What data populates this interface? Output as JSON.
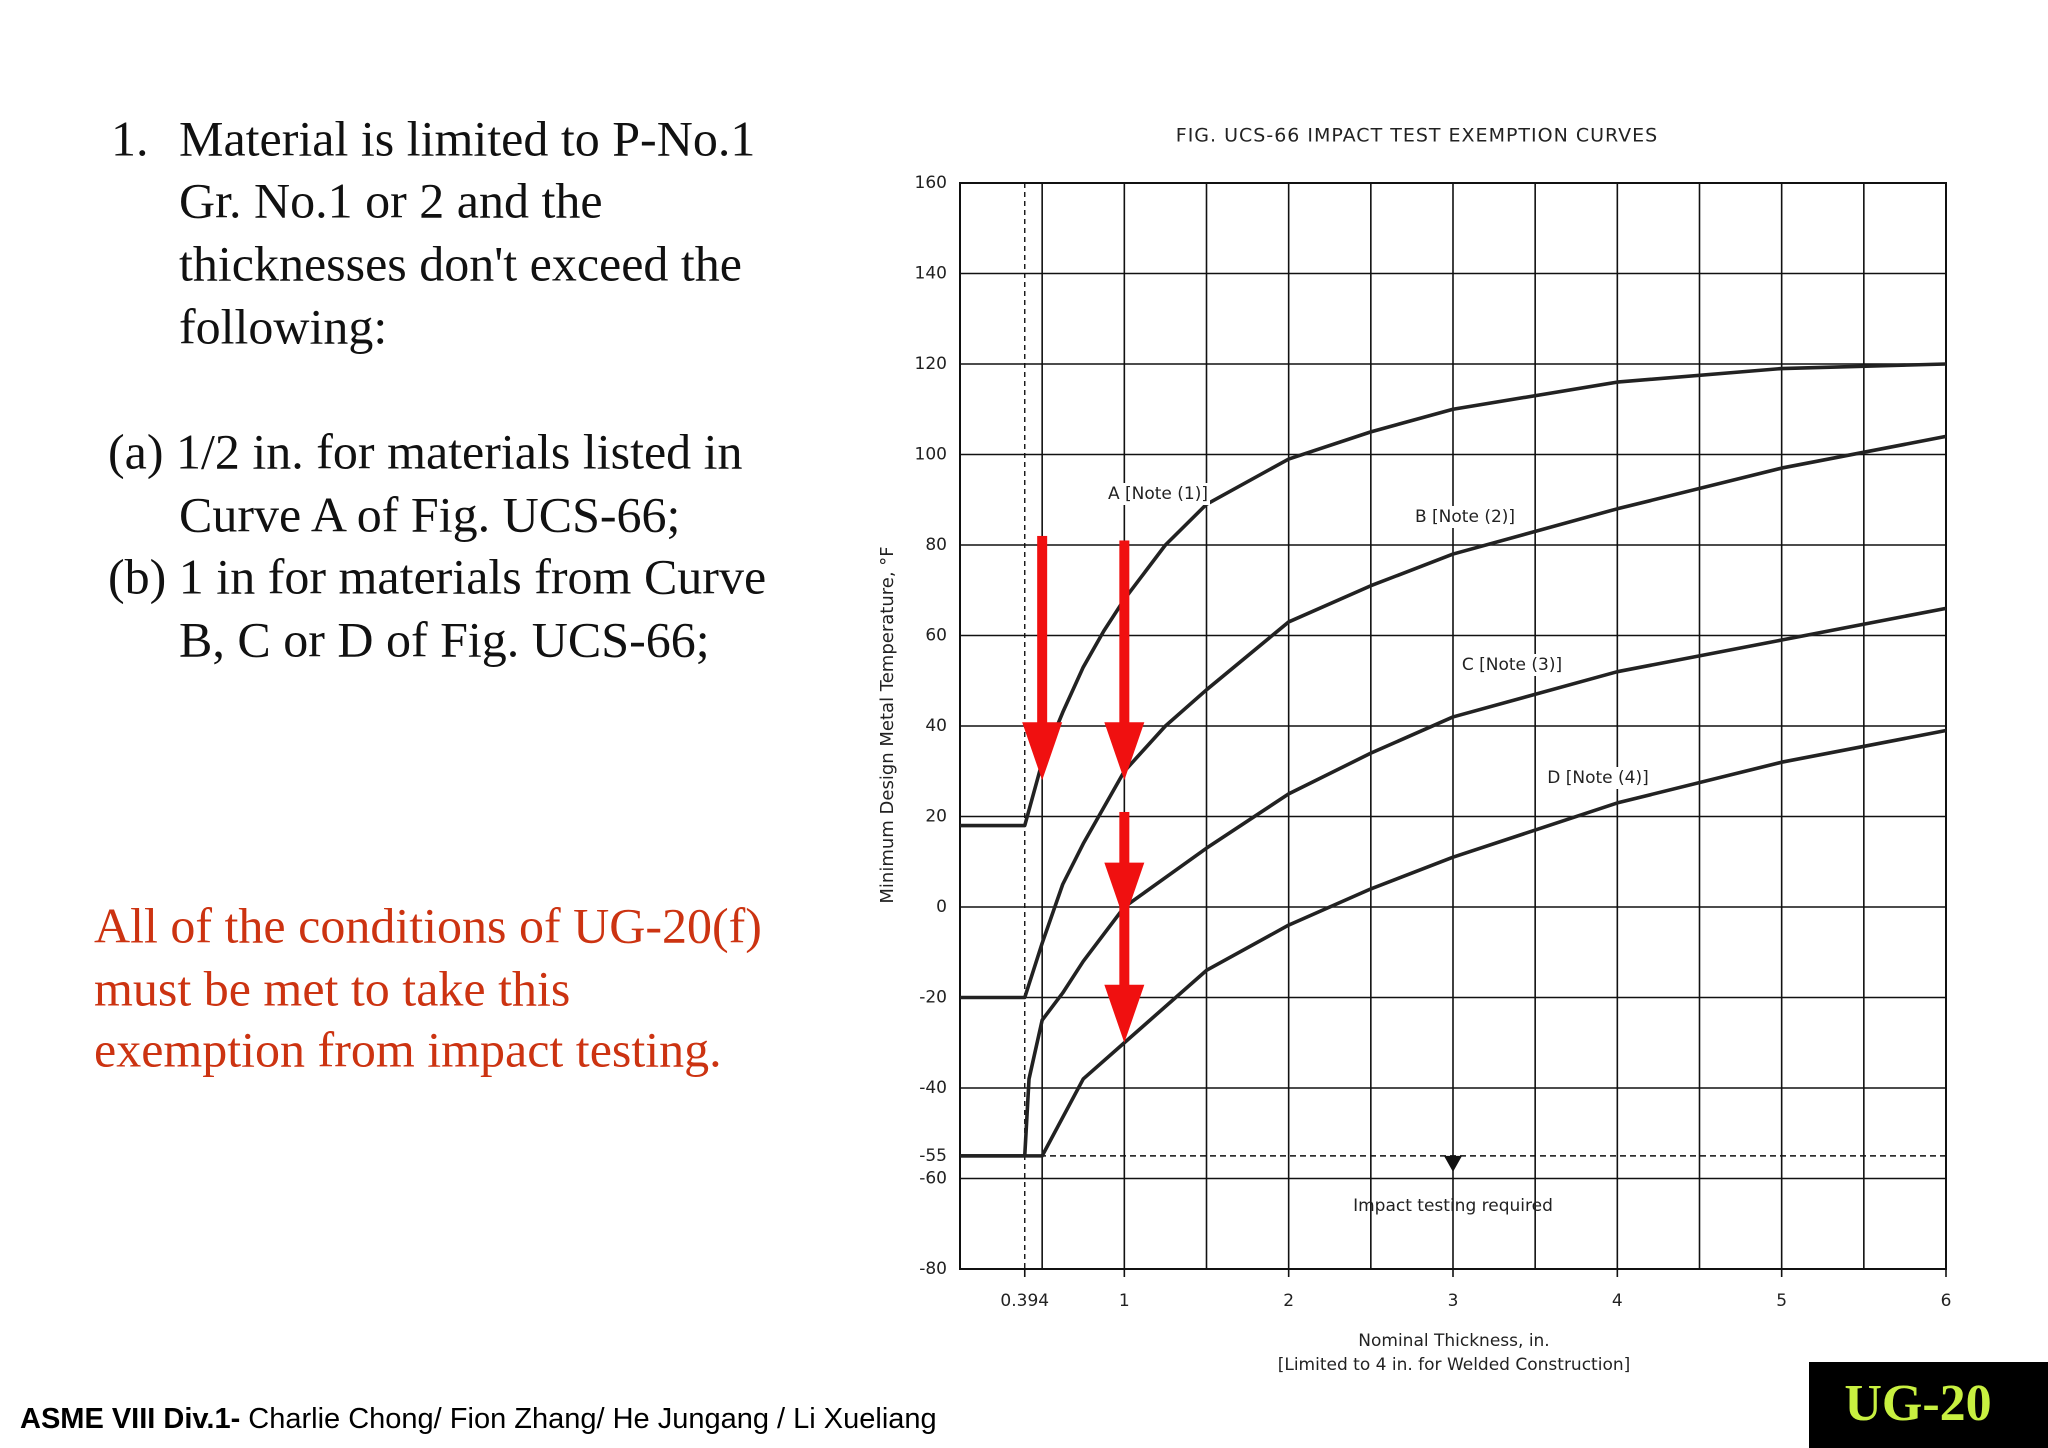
{
  "slide": {
    "item": {
      "number": "1.",
      "lines": [
        "Material is limited to P-No.1",
        "Gr. No.1 or 2 and the",
        "thicknesses don't exceed the",
        "following:"
      ]
    },
    "subitems": [
      "(a) 1/2 in. for materials listed in",
      "Curve A of Fig. UCS-66;",
      "(b) 1 in for materials from Curve",
      "B, C or D of Fig. UCS-66;"
    ],
    "note": [
      "All of the conditions of UG-20(f)",
      "must be met to take this",
      "exemption from impact testing."
    ],
    "footer": {
      "bold": "ASME VIII Div.1-",
      "text": " Charlie Chong/ Fion Zhang/ He Jungang / Li Xueliang"
    },
    "badge": "UG-20"
  },
  "chart_data": {
    "type": "line",
    "title": "FIG. UCS-66   IMPACT TEST EXEMPTION CURVES",
    "y_label": "Minimum Design Metal Temperature, °F",
    "x_label": [
      "Nominal Thickness, in.",
      "[Limited to 4 in. for Welded Construction]"
    ],
    "annotation": "Impact testing required",
    "xlim": [
      0,
      6
    ],
    "ylim": [
      -80,
      160
    ],
    "xticks": [
      0.394,
      1,
      2,
      3,
      4,
      5,
      6
    ],
    "xgrid": [
      0.5,
      1,
      1.5,
      2,
      2.5,
      3,
      3.5,
      4,
      4.5,
      5,
      5.5
    ],
    "yticks": [
      160,
      140,
      120,
      100,
      80,
      60,
      40,
      20,
      0,
      -20,
      -40,
      -55,
      -60,
      -80
    ],
    "reference_lines": {
      "x": 0.394,
      "y": -55
    },
    "grid": true,
    "series": [
      {
        "name": "A [Note (1)]",
        "color": "#222222",
        "x": [
          0,
          0.394,
          0.5,
          0.625,
          0.75,
          0.875,
          1,
          1.25,
          1.5,
          2,
          2.5,
          3,
          4,
          5,
          6
        ],
        "values": [
          18,
          18,
          32,
          43,
          53,
          61,
          68,
          80,
          89,
          99,
          105,
          110,
          116,
          119,
          120
        ]
      },
      {
        "name": "B [Note (2)]",
        "color": "#222222",
        "x": [
          0,
          0.394,
          0.5,
          0.625,
          0.75,
          1,
          1.25,
          1.5,
          2,
          2.5,
          3,
          4,
          5,
          6
        ],
        "values": [
          -20,
          -20,
          -8,
          5,
          14,
          30,
          40,
          48,
          63,
          71,
          78,
          88,
          97,
          104
        ]
      },
      {
        "name": "C [Note (3)]",
        "color": "#222222",
        "x": [
          0,
          0.394,
          0.42,
          0.5,
          0.625,
          0.75,
          1,
          1.5,
          2,
          2.5,
          3,
          4,
          5,
          6
        ],
        "values": [
          -55,
          -55,
          -38,
          -25,
          -19,
          -12,
          0,
          13,
          25,
          34,
          42,
          52,
          59,
          66
        ]
      },
      {
        "name": "D [Note (4)]",
        "color": "#222222",
        "x": [
          0,
          0.5,
          0.75,
          1,
          1.5,
          2,
          2.5,
          3,
          4,
          5,
          6
        ],
        "values": [
          -55,
          -55,
          -38,
          -30,
          -14,
          -4,
          4,
          11,
          23,
          32,
          39
        ]
      }
    ]
  }
}
